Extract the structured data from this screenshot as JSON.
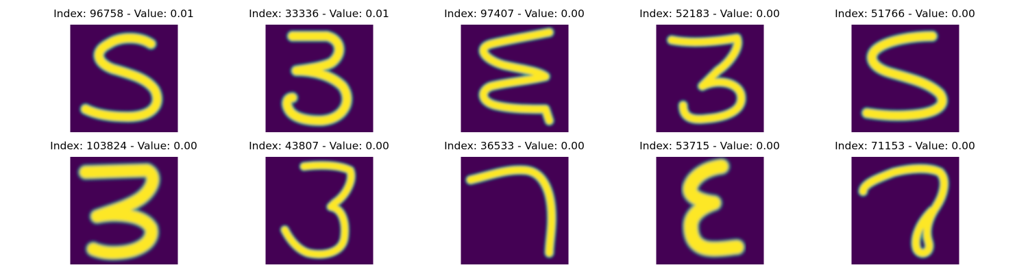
{
  "figure": {
    "background": "#ffffff",
    "cmap_low": "#440154",
    "cmap_mid": "#21918c",
    "cmap_high": "#fde725",
    "items": [
      {
        "title": "Index: 96758 - Value: 0.01",
        "digit": "5"
      },
      {
        "title": "Index: 33336 - Value: 0.01",
        "digit": "3"
      },
      {
        "title": "Index: 97407 - Value: 0.00",
        "digit": "3"
      },
      {
        "title": "Index: 52183 - Value: 0.00",
        "digit": "3"
      },
      {
        "title": "Index: 51766 - Value: 0.00",
        "digit": "5"
      },
      {
        "title": "Index: 103824 - Value: 0.00",
        "digit": "3"
      },
      {
        "title": "Index: 43807 - Value: 0.00",
        "digit": "3"
      },
      {
        "title": "Index: 36533 - Value: 0.00",
        "digit": "7"
      },
      {
        "title": "Index: 53715 - Value: 0.00",
        "digit": "3"
      },
      {
        "title": "Index: 71153 - Value: 0.00",
        "digit": "7"
      }
    ]
  }
}
